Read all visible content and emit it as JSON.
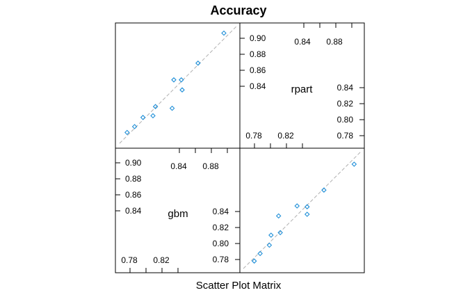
{
  "chart_data": {
    "type": "scatter",
    "title": "Accuracy",
    "subtitle": "Scatter Plot Matrix",
    "variables": [
      "gbm",
      "rpart"
    ],
    "reference_line": "y = x (dashed)",
    "marker": "open diamond",
    "colors": {
      "points": "#1f8fd8",
      "reference": "#b0b0b0",
      "frame": "#000000"
    },
    "ticks": {
      "rpart_top": [
        "0.90",
        "0.88",
        "0.86",
        "0.84",
        "0.84",
        "0.88"
      ],
      "rpart_bottom": [
        "0.84",
        "0.82",
        "0.80",
        "0.78",
        "0.78",
        "0.82"
      ],
      "gbm_top": [
        "0.90",
        "0.88",
        "0.86",
        "0.84",
        "0.84",
        "0.88"
      ],
      "gbm_bottom": [
        "0.84",
        "0.82",
        "0.80",
        "0.78",
        "0.78",
        "0.82"
      ]
    },
    "points": [
      {
        "gbm": 0.775,
        "rpart": 0.779
      },
      {
        "gbm": 0.784,
        "rpart": 0.786
      },
      {
        "gbm": 0.794,
        "rpart": 0.797
      },
      {
        "gbm": 0.806,
        "rpart": 0.799
      },
      {
        "gbm": 0.809,
        "rpart": 0.81
      },
      {
        "gbm": 0.829,
        "rpart": 0.808
      },
      {
        "gbm": 0.831,
        "rpart": 0.842
      },
      {
        "gbm": 0.841,
        "rpart": 0.83
      },
      {
        "gbm": 0.84,
        "rpart": 0.842
      },
      {
        "gbm": 0.86,
        "rpart": 0.862
      },
      {
        "gbm": 0.891,
        "rpart": 0.898
      }
    ],
    "xlim": [
      0.766,
      0.906
    ],
    "ylim": [
      0.766,
      0.906
    ]
  }
}
